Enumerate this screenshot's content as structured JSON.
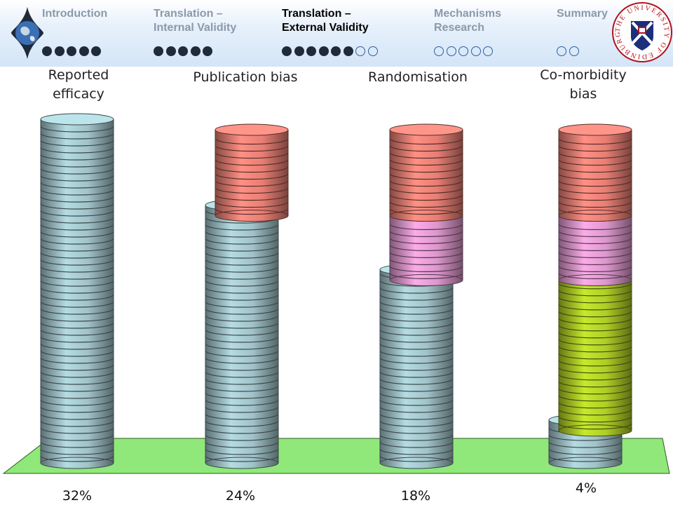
{
  "nav": {
    "sections": [
      {
        "label": "Introduction",
        "dots_filled": 5,
        "dots_empty": 0,
        "active": false
      },
      {
        "label": "Translation –\nInternal Validity",
        "dots_filled": 5,
        "dots_empty": 0,
        "active": false
      },
      {
        "label": "Translation –\nExternal Validity",
        "dots_filled": 6,
        "dots_empty": 2,
        "active": true
      },
      {
        "label": "Mechanisms\nResearch",
        "dots_filled": 0,
        "dots_empty": 5,
        "active": false
      },
      {
        "label": "Summary",
        "dots_filled": 0,
        "dots_empty": 2,
        "active": false
      }
    ],
    "logo_text": "THE UNIVERSITY OF EDINBURGH",
    "logo_icon": "university-crest-icon",
    "globe_icon": "globe-icon"
  },
  "chart_data": {
    "type": "bar",
    "categories": [
      "Reported\nefficacy",
      "Publication bias",
      "Randomisation",
      "Co-morbidity\nbias"
    ],
    "values": [
      32,
      24,
      18,
      4
    ],
    "value_labels": [
      "32%",
      "24%",
      "18%",
      "4%"
    ],
    "stacked_removed": [
      {
        "category": "Publication bias",
        "segments": [
          8
        ]
      },
      {
        "category": "Randomisation",
        "segments": [
          8,
          6
        ]
      },
      {
        "category": "Co-morbidity bias",
        "segments": [
          8,
          6,
          14
        ]
      }
    ],
    "ylim": [
      0,
      32
    ],
    "colors": {
      "remaining": "#a8ccd2",
      "publication_bias": "#f3857a",
      "randomisation": "#e99fd8",
      "comorbidity": "#b8d828",
      "floor": "#8fe879"
    },
    "grid": false,
    "legend": "none"
  }
}
